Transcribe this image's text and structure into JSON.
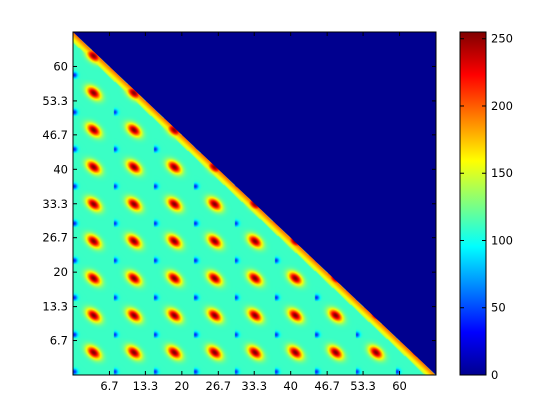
{
  "chart_data": {
    "type": "heatmap",
    "title": "",
    "xlabel": "",
    "ylabel": "",
    "x_ticks": [
      "6.7",
      "13.3",
      "20",
      "26.7",
      "33.3",
      "40",
      "46.7",
      "53.3",
      "60"
    ],
    "x_tick_values": [
      6.7,
      13.3,
      20,
      26.7,
      33.3,
      40,
      46.7,
      53.3,
      60
    ],
    "y_ticks": [
      "6.7",
      "13.3",
      "20",
      "26.7",
      "33.3",
      "40",
      "46.7",
      "53.3",
      "60"
    ],
    "y_tick_values": [
      6.7,
      13.3,
      20,
      26.7,
      33.3,
      40,
      46.7,
      53.3,
      60
    ],
    "xlim": [
      0,
      66.7
    ],
    "ylim": [
      0,
      66.7
    ],
    "colorbar": {
      "colormap": "jet",
      "range": [
        0,
        255
      ],
      "ticks": [
        "0",
        "50",
        "100",
        "150",
        "200",
        "250"
      ],
      "tick_values": [
        0,
        50,
        100,
        150,
        200,
        250
      ]
    },
    "grid": false,
    "masked_region": "upper-right triangle (x + y > 66.7) has value 0",
    "pattern": "periodic elliptical maxima (~255) in a lattice of 9 columns by 9 rows, background ~110"
  }
}
